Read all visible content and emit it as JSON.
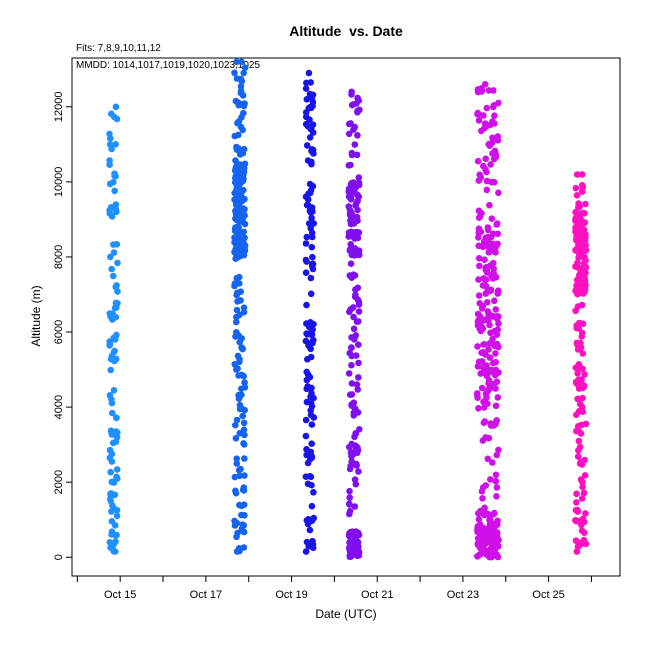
{
  "chart_data": {
    "type": "scatter",
    "title": "Altitude  vs. Date",
    "subtitle": "Fits: 7,8,9,10,11,12",
    "annotation": "MMDD: 1014,1017,1019,1020,1023,1025",
    "xlabel": "Date (UTC)",
    "ylabel": "Altitude (m)",
    "xlim": [
      "2025-10-13T21:00",
      "2025-10-26T16:00"
    ],
    "ylim": [
      -500,
      13300
    ],
    "x_ticks": [
      "2025-10-15",
      "2025-10-17",
      "2025-10-19",
      "2025-10-21",
      "2025-10-23",
      "2025-10-25"
    ],
    "x_tick_labels": [
      "Oct 15",
      "Oct 17",
      "Oct 19",
      "Oct 21",
      "Oct 23",
      "Oct 25"
    ],
    "x_minor_ticks": [
      "2025-10-14",
      "2025-10-16",
      "2025-10-18",
      "2025-10-20",
      "2025-10-22",
      "2025-10-24",
      "2025-10-26"
    ],
    "y_ticks": [
      0,
      2000,
      4000,
      6000,
      8000,
      10000,
      12000
    ],
    "y_tick_labels": [
      "0",
      "2000",
      "4000",
      "6000",
      "8000",
      "10000",
      "12000"
    ],
    "grid": false,
    "legend": "none",
    "series": [
      {
        "name": "1014",
        "color": "#1e90ff",
        "x_start": "2025-10-14T18:00",
        "x_end": "2025-10-14T22:30",
        "y_min": 150,
        "y_max": 12000,
        "count": 110,
        "dense_bands": []
      },
      {
        "name": "1017",
        "color": "#1464f0",
        "x_start": "2025-10-17T16:00",
        "x_end": "2025-10-17T22:00",
        "y_min": 150,
        "y_max": 13200,
        "count": 260,
        "dense_bands": [
          [
            8000,
            10500
          ]
        ]
      },
      {
        "name": "1019",
        "color": "#1a14e8",
        "x_start": "2025-10-19T08:00",
        "x_end": "2025-10-19T12:30",
        "y_min": 150,
        "y_max": 12900,
        "count": 130,
        "dense_bands": []
      },
      {
        "name": "1020",
        "color": "#8010f0",
        "x_start": "2025-10-20T08:00",
        "x_end": "2025-10-20T14:00",
        "y_min": 150,
        "y_max": 12400,
        "count": 220,
        "dense_bands": [
          [
            0,
            700
          ],
          [
            8000,
            10000
          ]
        ]
      },
      {
        "name": "1023",
        "color": "#d010e8",
        "x_start": "2025-10-23T08:00",
        "x_end": "2025-10-23T20:00",
        "y_min": 150,
        "y_max": 12600,
        "count": 330,
        "dense_bands": [
          [
            0,
            1200
          ],
          [
            4000,
            8800
          ]
        ]
      },
      {
        "name": "1025",
        "color": "#ff10c0",
        "x_start": "2025-10-25T15:00",
        "x_end": "2025-10-25T21:00",
        "y_min": 150,
        "y_max": 10200,
        "count": 210,
        "dense_bands": [
          [
            7000,
            9200
          ]
        ]
      }
    ]
  }
}
